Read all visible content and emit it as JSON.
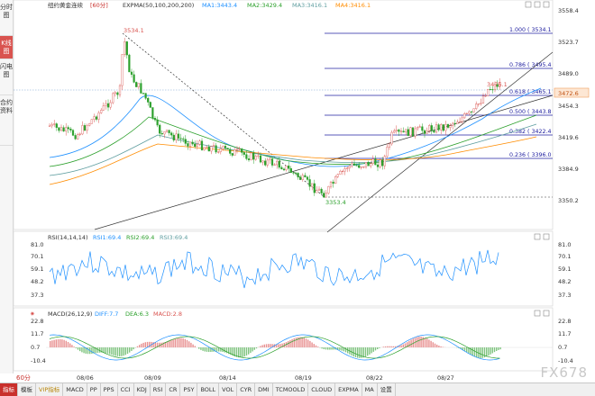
{
  "sidebar": {
    "items": [
      {
        "label": "分时图"
      },
      {
        "label": "K线图"
      },
      {
        "label": "闪电图"
      },
      {
        "label": "合约资料"
      }
    ]
  },
  "main_header": {
    "instrument": "纽约黄金连续",
    "period": "[60分]",
    "indicator": "EXPMA(50,100,200,200)",
    "ma1": "MA1:3443.4",
    "ma2": "MA2:3429.4",
    "ma3": "MA3:3416.1",
    "ma4": "MA4:3416.1",
    "colors": {
      "ma1": "#1e90ff",
      "ma2": "#2ca02c",
      "ma3": "#5f9ea0",
      "ma4": "#ff8c00"
    }
  },
  "price_axis": {
    "ticks": [
      "3558.4",
      "3523.7",
      "3489.0",
      "3454.3",
      "3419.6",
      "3384.9",
      "3350.2"
    ],
    "current_price": "3472.6"
  },
  "annotations": {
    "high": "3534.1",
    "low": "3353.4",
    "recent_high": "3476.1"
  },
  "fibonacci": [
    {
      "label": "1.000 ( 3534.1"
    },
    {
      "label": "0.786 ( 3495.4"
    },
    {
      "label": "0.618 ( 3465.1"
    },
    {
      "label": "0.500 ( 3443.8"
    },
    {
      "label": "0.382 ( 3422.4"
    },
    {
      "label": "0.236 ( 3396.0"
    }
  ],
  "rsi": {
    "title": "RSI(14,14,14)",
    "rsi1": "RSI1:69.4",
    "rsi2": "RSI2:69.4",
    "rsi3": "RSI3:69.4",
    "ticks": [
      "81.0",
      "70.1",
      "59.1",
      "48.2",
      "37.3"
    ]
  },
  "macd": {
    "title": "MACD(26,12,9)",
    "diff": "DIFF:7.7",
    "dea": "DEA:6.3",
    "macd": "MACD:2.8",
    "ticks": [
      "22.8",
      "11.7",
      "0.7",
      "-10.4",
      "-21.5"
    ]
  },
  "dates": [
    "08/06",
    "08/09",
    "08/14",
    "08/19",
    "08/22",
    "08/27"
  ],
  "bottom_tabs": [
    "指标",
    "模板",
    "VIP指标",
    "MACD",
    "PP",
    "PPS",
    "CCI",
    "KDJ",
    "RSI",
    "CR",
    "PSY",
    "BOLL",
    "VOL",
    "CYR",
    "DMI",
    "TCMOOLD",
    "CLOUD",
    "EXPMA",
    "MA",
    "设置"
  ],
  "period_selector": "60分",
  "watermark": "FX678"
}
